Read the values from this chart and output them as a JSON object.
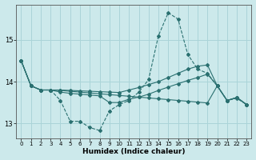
{
  "xlabel": "Humidex (Indice chaleur)",
  "bg_color": "#cce9eb",
  "line_color": "#2a7070",
  "grid_color": "#aad4d8",
  "xlim": [
    -0.5,
    23.5
  ],
  "ylim": [
    12.65,
    15.85
  ],
  "yticks": [
    13,
    14,
    15
  ],
  "xticks": [
    0,
    1,
    2,
    3,
    4,
    5,
    6,
    7,
    8,
    9,
    10,
    11,
    12,
    13,
    14,
    15,
    16,
    17,
    18,
    19,
    20,
    21,
    22,
    23
  ],
  "series": [
    {
      "x": [
        0,
        1,
        2,
        3,
        4,
        5,
        6,
        7,
        8,
        9,
        10,
        11,
        12,
        13,
        14,
        15,
        16,
        17,
        18,
        19,
        20,
        21,
        22,
        23
      ],
      "y": [
        14.5,
        13.9,
        13.8,
        13.8,
        13.55,
        13.05,
        13.05,
        12.9,
        12.83,
        13.3,
        13.45,
        13.55,
        13.75,
        14.05,
        15.1,
        15.65,
        15.5,
        14.65,
        14.3,
        14.2,
        13.9,
        13.55,
        13.6,
        13.45
      ],
      "dashed": true
    },
    {
      "x": [
        0,
        1,
        2,
        3,
        4,
        5,
        6,
        7,
        8,
        9,
        10,
        11,
        12,
        13,
        14,
        15,
        16,
        17,
        18,
        19,
        20,
        21,
        22,
        23
      ],
      "y": [
        14.5,
        13.9,
        13.8,
        13.8,
        13.8,
        13.79,
        13.78,
        13.77,
        13.76,
        13.75,
        13.74,
        13.8,
        13.86,
        13.93,
        14.0,
        14.1,
        14.2,
        14.3,
        14.37,
        14.4,
        13.9,
        13.55,
        13.62,
        13.45
      ],
      "dashed": false
    },
    {
      "x": [
        0,
        1,
        2,
        3,
        4,
        5,
        6,
        7,
        8,
        9,
        10,
        11,
        12,
        13,
        14,
        15,
        16,
        17,
        18,
        19,
        20,
        21,
        22,
        23
      ],
      "y": [
        14.5,
        13.9,
        13.8,
        13.8,
        13.79,
        13.77,
        13.75,
        13.73,
        13.71,
        13.69,
        13.67,
        13.65,
        13.63,
        13.61,
        13.59,
        13.57,
        13.55,
        13.53,
        13.51,
        13.49,
        13.9,
        13.55,
        13.62,
        13.45
      ],
      "dashed": false
    },
    {
      "x": [
        0,
        1,
        2,
        3,
        4,
        5,
        6,
        7,
        8,
        9,
        10,
        11,
        12,
        13,
        14,
        15,
        16,
        17,
        18,
        19,
        20,
        21,
        22,
        23
      ],
      "y": [
        14.5,
        13.9,
        13.8,
        13.8,
        13.75,
        13.72,
        13.7,
        13.68,
        13.66,
        13.5,
        13.5,
        13.58,
        13.63,
        13.7,
        13.79,
        13.87,
        13.95,
        14.03,
        14.1,
        14.18,
        13.9,
        13.55,
        13.62,
        13.45
      ],
      "dashed": false
    }
  ]
}
